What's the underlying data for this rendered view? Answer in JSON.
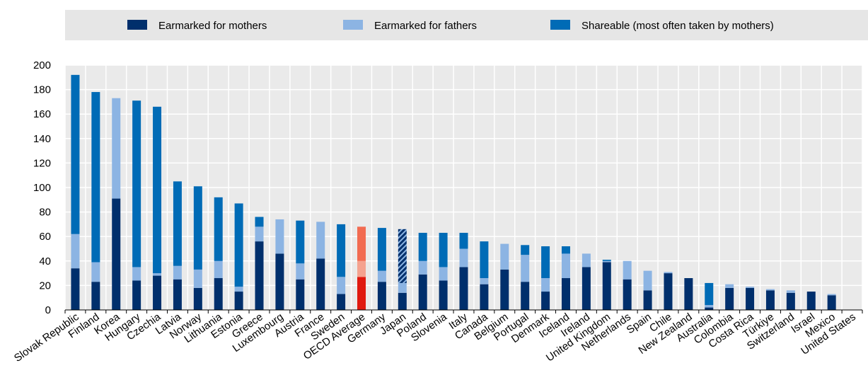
{
  "chart_data": {
    "type": "bar",
    "stacked": true,
    "legend_position": "top",
    "grid": true,
    "xlabel": "",
    "ylabel": "",
    "ylim": [
      0,
      200
    ],
    "yticks": [
      0,
      20,
      40,
      60,
      80,
      100,
      120,
      140,
      160,
      180,
      200
    ],
    "categories": [
      "Slovak Republic",
      "Finland",
      "Korea",
      "Hungary",
      "Czechia",
      "Latvia",
      "Norway",
      "Lithuania",
      "Estonia",
      "Greece",
      "Luxembourg",
      "Austria",
      "France",
      "Sweden",
      "OECD Average",
      "Germany",
      "Japan",
      "Poland",
      "Slovenia",
      "Italy",
      "Canada",
      "Belgium",
      "Portugal",
      "Denmark",
      "Iceland",
      "Ireland",
      "United Kingdom",
      "Netherlands",
      "Spain",
      "Chile",
      "New Zealand",
      "Australia",
      "Colombia",
      "Costa Rica",
      "Türkiye",
      "Switzerland",
      "Israel",
      "Mexico",
      "United States"
    ],
    "highlight_category": "OECD Average",
    "hatched_category": "Japan",
    "series": [
      {
        "name": "Earmarked for mothers",
        "color": "#002f6c",
        "highlight_color": "#e0190f",
        "values": [
          34,
          23,
          91,
          24,
          28,
          25,
          18,
          26,
          15,
          56,
          46,
          25,
          42,
          13,
          27,
          23,
          14,
          29,
          24,
          35,
          21,
          33,
          23,
          15,
          26,
          35,
          39,
          25,
          16,
          30,
          26,
          2,
          18,
          18,
          16,
          14,
          15,
          12,
          0
        ]
      },
      {
        "name": "Earmarked for fathers",
        "color": "#8cb4e3",
        "highlight_color": "#f5a28f",
        "values": [
          28,
          16,
          82,
          11,
          2,
          11,
          15,
          14,
          4,
          12,
          28,
          13,
          30,
          14,
          13,
          9,
          8,
          11,
          11,
          15,
          5,
          21,
          22,
          11,
          20,
          11,
          1,
          15,
          16,
          1,
          0,
          2,
          3,
          1,
          1,
          2,
          0,
          1,
          0
        ]
      },
      {
        "name": "Shareable (most often taken by mothers)",
        "color": "#006bb6",
        "highlight_color": "#f26b51",
        "values": [
          130,
          139,
          0,
          136,
          136,
          69,
          68,
          52,
          68,
          8,
          0,
          35,
          0,
          43,
          28,
          35,
          44,
          23,
          28,
          13,
          30,
          0,
          8,
          26,
          6,
          0,
          1,
          0,
          0,
          0,
          0,
          18,
          0,
          0,
          0,
          0,
          0,
          0,
          0
        ]
      }
    ]
  }
}
